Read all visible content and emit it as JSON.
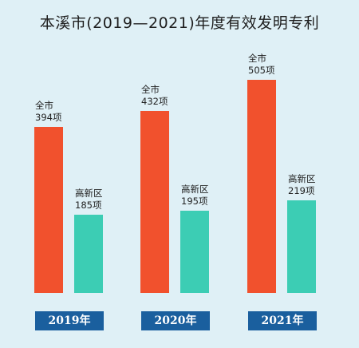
{
  "chart_data": {
    "type": "bar",
    "title": "本溪市(2019—2021)年度有效发明专利",
    "categories": [
      "2019年",
      "2020年",
      "2021年"
    ],
    "series": [
      {
        "name": "全市",
        "values": [
          394,
          432,
          505
        ],
        "labels": [
          "394项",
          "432项",
          "505项"
        ],
        "color": "#f1512d"
      },
      {
        "name": "高新区",
        "values": [
          185,
          195,
          219
        ],
        "labels": [
          "185项",
          "195项",
          "219项"
        ],
        "color": "#3ccdb4"
      }
    ],
    "ylim": [
      0,
      505
    ],
    "grid": false,
    "category_badge_color": "#1a5f9e",
    "background_color": "#dff0f6"
  }
}
